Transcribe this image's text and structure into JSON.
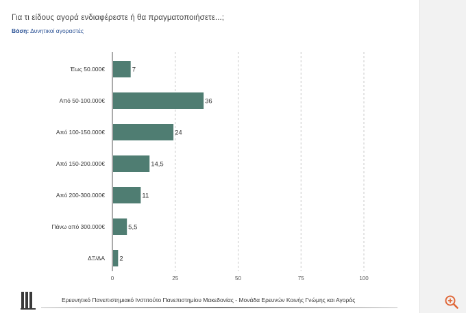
{
  "question": "Για τι είδους αγορά ενδιαφέρεστε ή θα πραγματοποιήσετε...;",
  "base": {
    "label": "Βάση:",
    "value": "Δυνητικοί αγοραστές"
  },
  "footer": "Ερευνητικό Πανεπιστημιακό Ινστιτούτο Πανεπιστημίου Μακεδονίας - Μονάδα Ερευνών Κοινής Γνώμης και Αγοράς",
  "colors": {
    "bar": "#4f7d72",
    "grid": "#c8c8c8",
    "axis": "#555555"
  },
  "icons": {
    "logo": "university-logo-icon",
    "zoom": "zoom-in-icon"
  },
  "chart_data": {
    "type": "bar",
    "orientation": "horizontal",
    "categories": [
      "Έως 50.000€",
      "Από 50-100.000€",
      "Από 100-150.000€",
      "Από 150-200.000€",
      "Από 200-300.000€",
      "Πάνω από 300.000€",
      "ΔΞ/ΔΑ"
    ],
    "values": [
      7,
      36,
      24,
      14.5,
      11,
      5.5,
      2
    ],
    "value_labels": [
      "7",
      "36",
      "24",
      "14,5",
      "11",
      "5,5",
      "2"
    ],
    "xlim": [
      0,
      100
    ],
    "xticks": [
      0,
      25,
      50,
      75,
      100
    ],
    "grid": "vertical dashed",
    "legend": "none"
  }
}
